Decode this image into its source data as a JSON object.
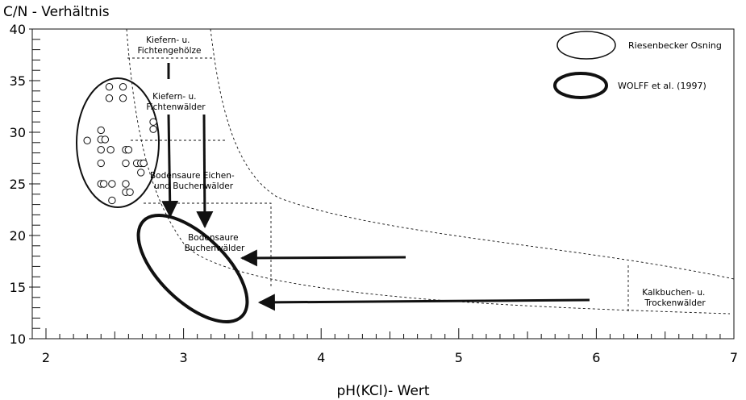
{
  "chart_data": {
    "type": "scatter",
    "ylabel": "C/N - Verhältnis",
    "xlabel": "pH(KCl)- Wert",
    "xlim": [
      2,
      7
    ],
    "ylim": [
      10,
      40
    ],
    "x_ticks": [
      "2",
      "3",
      "4",
      "5",
      "6",
      "7"
    ],
    "y_ticks": [
      "10",
      "15",
      "20",
      "25",
      "30",
      "35",
      "40"
    ],
    "grid": false,
    "legend_position": "top-right",
    "legend": [
      {
        "label": "Riesenbecker Osning",
        "style": "thin-ellipse"
      },
      {
        "label": "WOLFF et al. (1997)",
        "style": "thick-ellipse"
      }
    ],
    "series": [
      {
        "name": "Riesenbecker Osning",
        "points": [
          [
            2.46,
            34.4
          ],
          [
            2.56,
            34.4
          ],
          [
            2.46,
            33.3
          ],
          [
            2.56,
            33.3
          ],
          [
            2.78,
            31.0
          ],
          [
            2.78,
            30.3
          ],
          [
            2.4,
            30.2
          ],
          [
            2.3,
            29.2
          ],
          [
            2.4,
            29.3
          ],
          [
            2.43,
            29.3
          ],
          [
            2.4,
            28.3
          ],
          [
            2.47,
            28.3
          ],
          [
            2.58,
            28.3
          ],
          [
            2.6,
            28.3
          ],
          [
            2.4,
            27.0
          ],
          [
            2.58,
            27.0
          ],
          [
            2.66,
            27.0
          ],
          [
            2.69,
            27.0
          ],
          [
            2.71,
            27.0
          ],
          [
            2.69,
            26.1
          ],
          [
            2.4,
            25.0
          ],
          [
            2.42,
            25.0
          ],
          [
            2.48,
            25.0
          ],
          [
            2.58,
            25.0
          ],
          [
            2.58,
            24.2
          ],
          [
            2.61,
            24.2
          ],
          [
            2.48,
            23.4
          ]
        ]
      }
    ],
    "annotations": [
      {
        "text": [
          "Kiefern- u.",
          "Fichtengehölze"
        ],
        "x": 2.97,
        "y": 38.6
      },
      {
        "text": [
          "Kiefern- u.",
          "Fichtenwälder"
        ],
        "x": 3.0,
        "y": 33.0
      },
      {
        "text": [
          "Bodensaure Eichen-",
          "und Buchenwälder"
        ],
        "x": 3.03,
        "y": 25.2
      },
      {
        "text": [
          "Bodensaure",
          "Buchenwälder"
        ],
        "x": 3.22,
        "y": 19.7
      },
      {
        "text": [
          "Kalkbuchen- u.",
          "Trockenwälder"
        ],
        "x": 6.59,
        "y": 14.5
      }
    ]
  }
}
